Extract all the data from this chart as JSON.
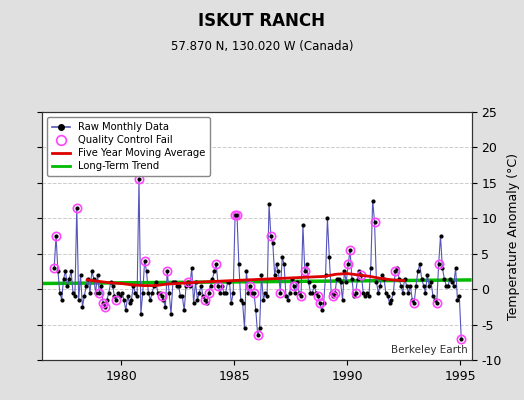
{
  "title": "ISKUT RANCH",
  "subtitle": "57.870 N, 130.020 W (Canada)",
  "ylabel": "Temperature Anomaly (°C)",
  "attribution": "Berkeley Earth",
  "xlim": [
    1976.5,
    1995.5
  ],
  "ylim": [
    -10,
    25
  ],
  "yticks": [
    -10,
    -5,
    0,
    5,
    10,
    15,
    20,
    25
  ],
  "xticks": [
    1980,
    1985,
    1990,
    1995
  ],
  "fig_bg_color": "#e0e0e0",
  "plot_bg_color": "#ffffff",
  "raw_line_color": "#5555bb",
  "raw_dot_color": "#000000",
  "qc_fail_color": "#ff44ff",
  "moving_avg_color": "#dd0000",
  "trend_color": "#00bb00",
  "grid_color": "#cccccc",
  "raw_times": [
    1977.042,
    1977.125,
    1977.208,
    1977.292,
    1977.375,
    1977.458,
    1977.542,
    1977.625,
    1977.708,
    1977.792,
    1977.875,
    1977.958,
    1978.042,
    1978.125,
    1978.208,
    1978.292,
    1978.375,
    1978.458,
    1978.542,
    1978.625,
    1978.708,
    1978.792,
    1978.875,
    1978.958,
    1979.042,
    1979.125,
    1979.208,
    1979.292,
    1979.375,
    1979.458,
    1979.542,
    1979.625,
    1979.708,
    1979.792,
    1979.875,
    1979.958,
    1980.042,
    1980.125,
    1980.208,
    1980.292,
    1980.375,
    1980.458,
    1980.542,
    1980.625,
    1980.708,
    1980.792,
    1980.875,
    1980.958,
    1981.042,
    1981.125,
    1981.208,
    1981.292,
    1981.375,
    1981.458,
    1981.542,
    1981.625,
    1981.708,
    1981.792,
    1981.875,
    1981.958,
    1982.042,
    1982.125,
    1982.208,
    1982.292,
    1982.375,
    1982.458,
    1982.542,
    1982.625,
    1982.708,
    1982.792,
    1982.875,
    1982.958,
    1983.042,
    1983.125,
    1983.208,
    1983.292,
    1983.375,
    1983.458,
    1983.542,
    1983.625,
    1983.708,
    1983.792,
    1983.875,
    1983.958,
    1984.042,
    1984.125,
    1984.208,
    1984.292,
    1984.375,
    1984.458,
    1984.542,
    1984.625,
    1984.708,
    1984.792,
    1984.875,
    1984.958,
    1985.042,
    1985.125,
    1985.208,
    1985.292,
    1985.375,
    1985.458,
    1985.542,
    1985.625,
    1985.708,
    1985.792,
    1985.875,
    1985.958,
    1986.042,
    1986.125,
    1986.208,
    1986.292,
    1986.375,
    1986.458,
    1986.542,
    1986.625,
    1986.708,
    1986.792,
    1986.875,
    1986.958,
    1987.042,
    1987.125,
    1987.208,
    1987.292,
    1987.375,
    1987.458,
    1987.542,
    1987.625,
    1987.708,
    1987.792,
    1987.875,
    1987.958,
    1988.042,
    1988.125,
    1988.208,
    1988.292,
    1988.375,
    1988.458,
    1988.542,
    1988.625,
    1988.708,
    1988.792,
    1988.875,
    1988.958,
    1989.042,
    1989.125,
    1989.208,
    1989.292,
    1989.375,
    1989.458,
    1989.542,
    1989.625,
    1989.708,
    1989.792,
    1989.875,
    1989.958,
    1990.042,
    1990.125,
    1990.208,
    1990.292,
    1990.375,
    1990.458,
    1990.542,
    1990.625,
    1990.708,
    1990.792,
    1990.875,
    1990.958,
    1991.042,
    1991.125,
    1991.208,
    1991.292,
    1991.375,
    1991.458,
    1991.542,
    1991.625,
    1991.708,
    1991.792,
    1991.875,
    1991.958,
    1992.042,
    1992.125,
    1992.208,
    1992.292,
    1992.375,
    1992.458,
    1992.542,
    1992.625,
    1992.708,
    1992.792,
    1992.875,
    1992.958,
    1993.042,
    1993.125,
    1993.208,
    1993.292,
    1993.375,
    1993.458,
    1993.542,
    1993.625,
    1993.708,
    1993.792,
    1993.875,
    1993.958,
    1994.042,
    1994.125,
    1994.208,
    1994.292,
    1994.375,
    1994.458,
    1994.542,
    1994.625,
    1994.708,
    1994.792,
    1994.875,
    1994.958,
    1995.042
  ],
  "raw_values": [
    3.0,
    7.5,
    2.5,
    -0.5,
    -1.5,
    1.5,
    2.5,
    0.5,
    1.5,
    2.5,
    -0.5,
    -1.0,
    11.5,
    -1.5,
    2.0,
    -2.5,
    -1.0,
    0.5,
    1.5,
    -0.5,
    2.5,
    1.5,
    -0.5,
    2.0,
    -0.5,
    0.5,
    -2.0,
    -2.5,
    -1.5,
    -0.5,
    1.0,
    0.5,
    -1.0,
    -1.5,
    -0.5,
    -1.0,
    -0.5,
    -1.5,
    -3.0,
    -1.0,
    -2.0,
    -1.5,
    0.5,
    -0.5,
    -1.0,
    15.5,
    -3.5,
    -0.5,
    4.0,
    2.5,
    -0.5,
    -1.5,
    -0.5,
    0.5,
    1.0,
    -0.5,
    -0.5,
    -1.0,
    -1.5,
    -2.5,
    2.5,
    -0.5,
    -3.5,
    1.0,
    1.0,
    0.5,
    0.5,
    -1.0,
    -1.0,
    -3.0,
    0.5,
    1.0,
    0.5,
    3.0,
    -2.0,
    1.0,
    -1.5,
    -0.5,
    0.5,
    -1.0,
    -1.5,
    -2.0,
    -0.5,
    0.5,
    1.5,
    2.5,
    3.5,
    0.5,
    -0.5,
    0.5,
    -0.5,
    -0.5,
    1.0,
    1.0,
    -2.0,
    -0.5,
    10.5,
    10.5,
    3.5,
    -1.5,
    -2.0,
    -5.5,
    2.5,
    -0.5,
    0.5,
    -0.5,
    -0.5,
    -3.0,
    -6.5,
    -5.5,
    2.0,
    -1.5,
    -0.5,
    -1.0,
    12.0,
    7.5,
    6.5,
    2.0,
    3.5,
    2.5,
    -0.5,
    4.5,
    3.5,
    -1.0,
    -1.5,
    -0.5,
    1.5,
    0.5,
    -0.5,
    1.0,
    -0.5,
    -1.0,
    9.0,
    2.5,
    3.5,
    1.0,
    -0.5,
    -0.5,
    0.5,
    -0.5,
    -1.0,
    -2.0,
    -3.0,
    -2.0,
    2.0,
    10.0,
    4.5,
    -0.5,
    -1.0,
    -0.5,
    1.5,
    1.5,
    1.0,
    -1.5,
    2.5,
    1.0,
    3.5,
    5.5,
    1.5,
    -1.0,
    -0.5,
    1.5,
    2.5,
    2.0,
    -0.5,
    -1.0,
    -0.5,
    -1.0,
    3.0,
    12.5,
    9.5,
    1.0,
    -0.5,
    0.5,
    2.0,
    1.5,
    -0.5,
    -1.0,
    -2.0,
    -1.5,
    -0.5,
    2.5,
    3.0,
    1.5,
    0.5,
    -0.5,
    1.5,
    0.5,
    -0.5,
    0.5,
    -1.5,
    -2.0,
    0.5,
    2.5,
    3.5,
    1.5,
    0.5,
    -0.5,
    2.0,
    0.5,
    1.0,
    -1.0,
    -1.5,
    -2.0,
    3.5,
    7.5,
    3.0,
    1.5,
    0.5,
    0.5,
    1.5,
    1.0,
    0.5,
    3.0,
    -1.5,
    -1.0,
    -7.0
  ],
  "qc_fail_indices": [
    0,
    1,
    12,
    24,
    26,
    27,
    33,
    45,
    48,
    57,
    60,
    71,
    80,
    82,
    86,
    87,
    96,
    97,
    104,
    106,
    108,
    115,
    120,
    127,
    131,
    133,
    140,
    141,
    148,
    149,
    156,
    157,
    160,
    163,
    170,
    181,
    191,
    203,
    204,
    216
  ],
  "moving_avg_times": [
    1978.5,
    1979.0,
    1979.5,
    1980.0,
    1980.5,
    1981.0,
    1981.5,
    1982.0,
    1982.5,
    1983.0,
    1983.5,
    1989.0,
    1989.5,
    1990.0,
    1990.5,
    1991.0,
    1991.5,
    1992.0,
    1992.5
  ],
  "moving_avg_values": [
    1.3,
    1.1,
    0.9,
    0.8,
    0.6,
    0.5,
    0.5,
    0.7,
    0.8,
    0.9,
    1.0,
    1.8,
    2.1,
    2.2,
    2.0,
    1.8,
    1.5,
    1.3,
    1.2
  ],
  "trend_x": [
    1976.5,
    1995.5
  ],
  "trend_y": [
    0.8,
    1.3
  ]
}
